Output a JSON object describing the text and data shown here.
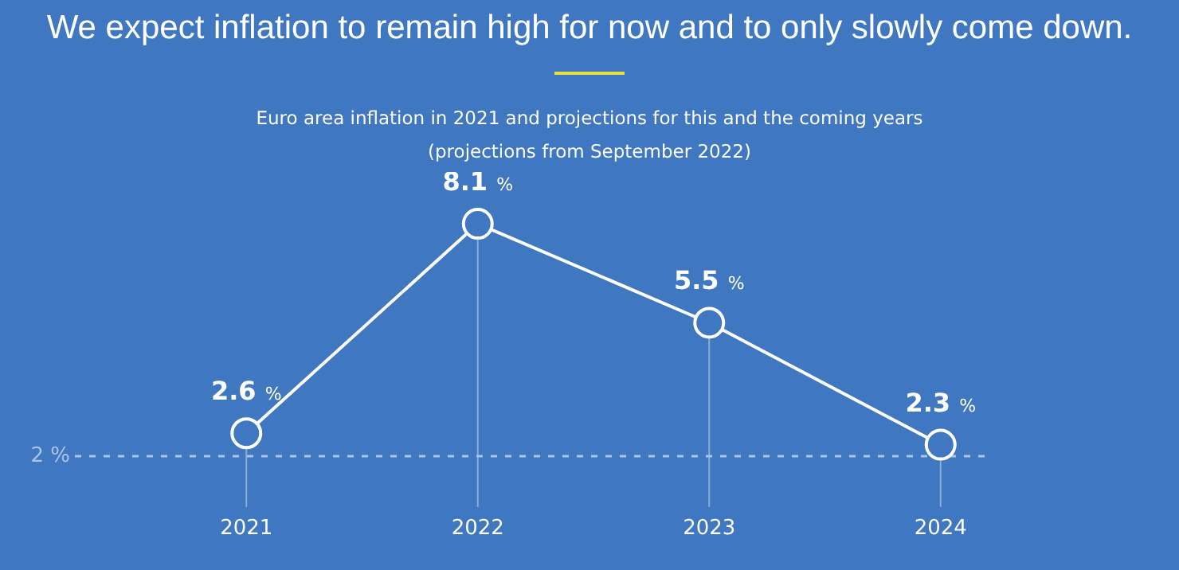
{
  "chart_data": {
    "type": "line",
    "title": "We expect inflation to remain high for now and to only slowly come down.",
    "subtitle": "Euro area inflation in 2021 and projections for this and the coming years\n(projections from September 2022)",
    "categories": [
      "2021",
      "2022",
      "2023",
      "2024"
    ],
    "series": [
      {
        "color": "#ffffff",
        "values": [
          2.6,
          8.1,
          5.5,
          2.3
        ],
        "value_labels": [
          "2.6 %",
          "8.1 %",
          "5.5 %",
          "2.3 %"
        ]
      }
    ],
    "ref_lines": [
      {
        "axis": "y",
        "value": 2,
        "label": "2 %",
        "color": "#a9c4e8",
        "line_style": "dashed"
      }
    ],
    "marker": "circle",
    "grid": "x",
    "legend": false,
    "tick_labels": "x"
  }
}
